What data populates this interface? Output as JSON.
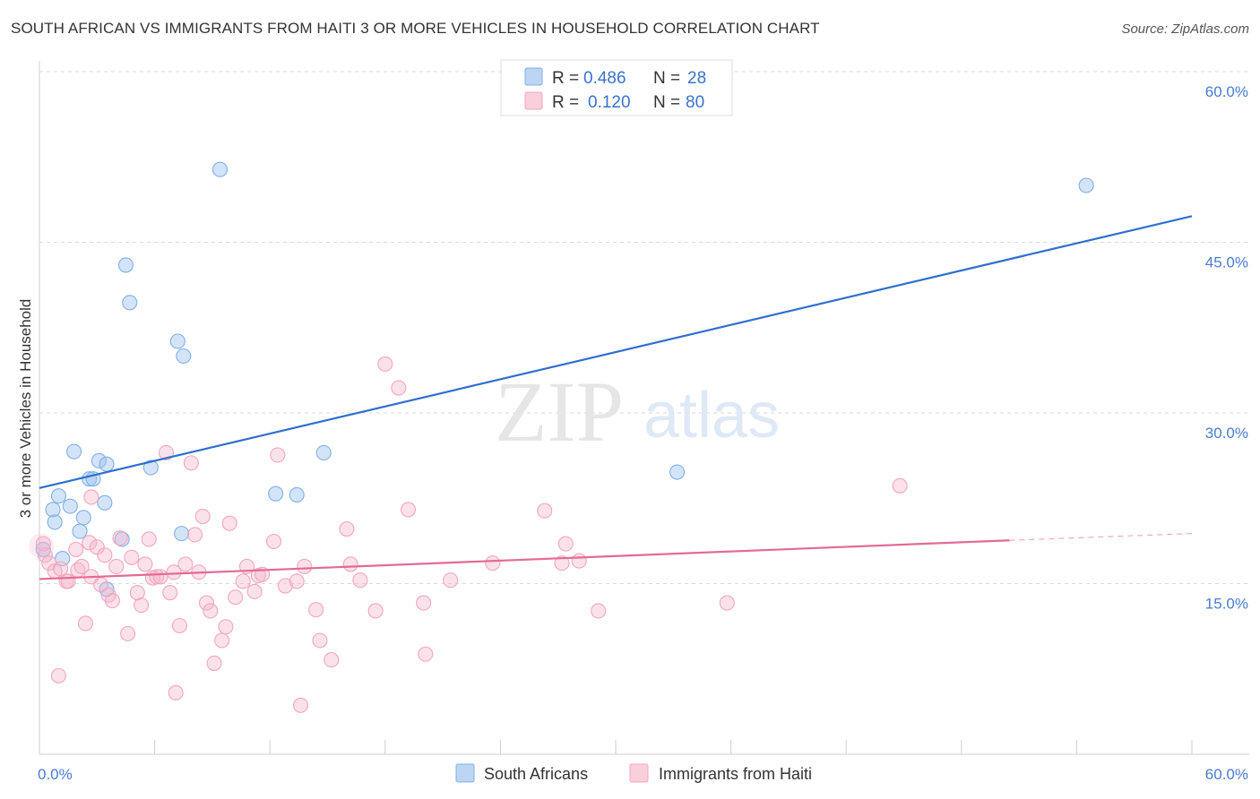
{
  "chart_data": {
    "type": "scatter",
    "title": "SOUTH AFRICAN VS IMMIGRANTS FROM HAITI 3 OR MORE VEHICLES IN HOUSEHOLD CORRELATION CHART",
    "source": "Source: ZipAtlas.com",
    "ylabel": "3 or more Vehicles in Household",
    "xlim": [
      0,
      60
    ],
    "ylim": [
      0,
      60
    ],
    "x_tick_labels": {
      "left": "0.0%",
      "right": "60.0%"
    },
    "y_ticks": [
      {
        "value": 15,
        "label": "15.0%"
      },
      {
        "value": 30,
        "label": "30.0%"
      },
      {
        "value": 45,
        "label": "45.0%"
      },
      {
        "value": 60,
        "label": "60.0%"
      }
    ],
    "legend": {
      "rows": [
        {
          "r_label": "R =",
          "r_value": "0.486",
          "n_label": "N =",
          "n_value": "28"
        },
        {
          "r_label": "R =",
          "r_value": "0.120",
          "n_label": "N =",
          "n_value": "80"
        }
      ]
    },
    "watermark": {
      "zip": "ZIP",
      "atlas": "atlas"
    },
    "series": [
      {
        "name": "South Africans",
        "color": "#7fb0e8",
        "line_color": "#2f6fce",
        "trend": {
          "x0": 0,
          "y0": 23.4,
          "x1": 60,
          "y1": 47.3
        },
        "points": [
          [
            0.2,
            18.0
          ],
          [
            0.7,
            21.5
          ],
          [
            0.8,
            20.4
          ],
          [
            1.0,
            22.7
          ],
          [
            1.2,
            17.2
          ],
          [
            1.6,
            21.8
          ],
          [
            1.8,
            26.6
          ],
          [
            2.1,
            19.6
          ],
          [
            2.3,
            20.8
          ],
          [
            2.6,
            24.2
          ],
          [
            2.8,
            24.2
          ],
          [
            3.1,
            25.8
          ],
          [
            3.4,
            22.1
          ],
          [
            3.5,
            25.5
          ],
          [
            3.5,
            14.5
          ],
          [
            4.3,
            18.9
          ],
          [
            4.5,
            43.0
          ],
          [
            4.7,
            39.7
          ],
          [
            5.8,
            25.2
          ],
          [
            7.2,
            36.3
          ],
          [
            7.5,
            35.0
          ],
          [
            9.4,
            51.4
          ],
          [
            12.3,
            22.9
          ],
          [
            13.4,
            22.8
          ],
          [
            14.8,
            26.5
          ],
          [
            7.4,
            19.4
          ],
          [
            33.2,
            24.8
          ],
          [
            54.5,
            50.0
          ]
        ]
      },
      {
        "name": "Immigrants from Haiti",
        "color": "#f4a6be",
        "line_color": "#e36a96",
        "trend": {
          "x0": 0,
          "y0": 15.4,
          "x1": 50.5,
          "y1": 18.8
        },
        "trend_ext": {
          "x0": 50.5,
          "y0": 18.8,
          "x1": 60,
          "y1": 19.4
        },
        "points": [
          [
            0.2,
            18.5
          ],
          [
            0.3,
            17.5
          ],
          [
            0.5,
            16.8
          ],
          [
            0.8,
            16.1
          ],
          [
            1.0,
            6.9
          ],
          [
            1.1,
            16.3
          ],
          [
            1.4,
            15.2
          ],
          [
            1.5,
            15.2
          ],
          [
            1.9,
            18.0
          ],
          [
            2.0,
            16.2
          ],
          [
            2.2,
            16.5
          ],
          [
            2.4,
            11.5
          ],
          [
            2.6,
            18.6
          ],
          [
            2.7,
            15.6
          ],
          [
            2.7,
            22.6
          ],
          [
            3.0,
            18.2
          ],
          [
            3.2,
            14.9
          ],
          [
            3.4,
            17.5
          ],
          [
            3.6,
            14.0
          ],
          [
            3.8,
            13.5
          ],
          [
            4.0,
            16.5
          ],
          [
            4.2,
            19.0
          ],
          [
            4.6,
            10.6
          ],
          [
            4.8,
            17.3
          ],
          [
            5.1,
            14.2
          ],
          [
            5.3,
            13.1
          ],
          [
            5.5,
            16.7
          ],
          [
            5.7,
            18.9
          ],
          [
            5.9,
            15.5
          ],
          [
            6.1,
            15.6
          ],
          [
            6.3,
            15.6
          ],
          [
            6.6,
            26.5
          ],
          [
            6.8,
            14.2
          ],
          [
            7.0,
            16.0
          ],
          [
            7.1,
            5.4
          ],
          [
            7.6,
            16.7
          ],
          [
            7.9,
            25.6
          ],
          [
            7.3,
            11.3
          ],
          [
            8.1,
            19.3
          ],
          [
            8.3,
            16.0
          ],
          [
            8.5,
            20.9
          ],
          [
            8.7,
            13.3
          ],
          [
            8.9,
            12.6
          ],
          [
            9.1,
            8.0
          ],
          [
            9.5,
            10.0
          ],
          [
            9.7,
            11.2
          ],
          [
            9.9,
            20.3
          ],
          [
            10.2,
            13.8
          ],
          [
            10.6,
            15.2
          ],
          [
            10.8,
            16.5
          ],
          [
            11.2,
            14.3
          ],
          [
            11.4,
            15.7
          ],
          [
            11.6,
            15.8
          ],
          [
            12.2,
            18.7
          ],
          [
            12.4,
            26.3
          ],
          [
            12.8,
            14.8
          ],
          [
            13.4,
            15.2
          ],
          [
            13.6,
            4.3
          ],
          [
            13.8,
            16.5
          ],
          [
            14.4,
            12.7
          ],
          [
            14.6,
            10.0
          ],
          [
            15.2,
            8.3
          ],
          [
            16.0,
            19.8
          ],
          [
            16.2,
            16.7
          ],
          [
            16.7,
            15.3
          ],
          [
            17.5,
            12.6
          ],
          [
            18.0,
            34.3
          ],
          [
            18.7,
            32.2
          ],
          [
            19.2,
            21.5
          ],
          [
            20.0,
            13.3
          ],
          [
            20.1,
            8.8
          ],
          [
            21.4,
            15.3
          ],
          [
            23.6,
            16.8
          ],
          [
            26.3,
            21.4
          ],
          [
            27.2,
            16.8
          ],
          [
            27.4,
            18.5
          ],
          [
            28.1,
            17.0
          ],
          [
            29.1,
            12.6
          ],
          [
            35.8,
            13.3
          ],
          [
            44.8,
            23.6
          ]
        ]
      }
    ]
  }
}
